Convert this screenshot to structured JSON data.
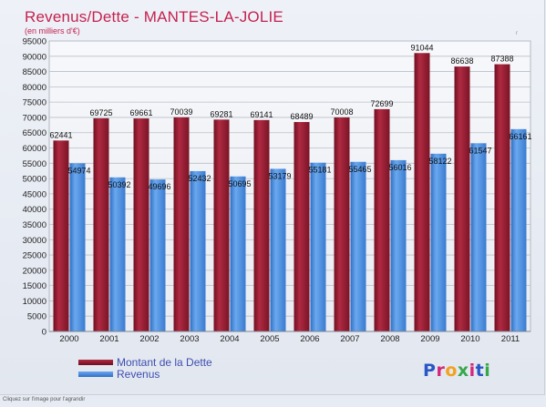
{
  "header": {
    "title": "Revenus/Dette - MANTES-LA-JOLIE",
    "subtitle": "(en milliers d'€)",
    "corner_mark": "r"
  },
  "legend": {
    "debt_label": "Montant de la Dette",
    "revenue_label": "Revenus"
  },
  "logo": {
    "letters": [
      {
        "ch": "P",
        "color": "#2a56c6"
      },
      {
        "ch": "r",
        "color": "#d4287a"
      },
      {
        "ch": "o",
        "color": "#f2a21e"
      },
      {
        "ch": "x",
        "color": "#37a84a"
      },
      {
        "ch": "i",
        "color": "#d4287a"
      },
      {
        "ch": "t",
        "color": "#2a56c6"
      },
      {
        "ch": "i",
        "color": "#37a84a"
      }
    ]
  },
  "footnote": "Cliquez sur l'image pour l'agrandir",
  "colors": {
    "debt": "#9b1b30",
    "revenue": "#4a90df",
    "grid": "#b9bfc9",
    "axis_text": "#222222",
    "title": "#c4224f"
  },
  "chart_data": {
    "type": "bar",
    "title": "Revenus/Dette - MANTES-LA-JOLIE",
    "ylabel": "(en milliers d'€)",
    "xlabel": "",
    "ylim": [
      0,
      95000
    ],
    "ytick_step": 5000,
    "grid": true,
    "legend_position": "bottom-left",
    "categories": [
      "2000",
      "2001",
      "2002",
      "2003",
      "2004",
      "2005",
      "2006",
      "2007",
      "2008",
      "2009",
      "2010",
      "2011"
    ],
    "series": [
      {
        "name": "Montant de la Dette",
        "values": [
          62441,
          69725,
          69661,
          70039,
          69281,
          69141,
          68489,
          70008,
          72699,
          91044,
          86638,
          87388
        ]
      },
      {
        "name": "Revenus",
        "values": [
          54974,
          50392,
          49696,
          52432,
          50695,
          53179,
          55181,
          55465,
          56016,
          58122,
          61547,
          66161
        ]
      }
    ]
  }
}
